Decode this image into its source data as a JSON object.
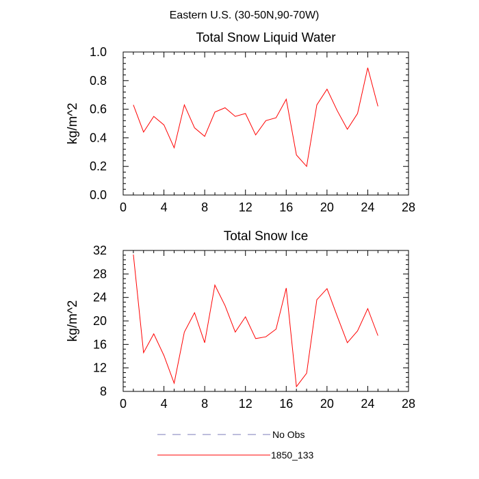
{
  "supertitle": "Eastern U.S. (30-50N,90-70W)",
  "chart_data": [
    {
      "type": "line",
      "title": "Total Snow Liquid Water",
      "ylabel": "kg/m^2",
      "xlabel": "",
      "xlim": [
        0,
        28
      ],
      "ylim": [
        0.0,
        1.0
      ],
      "xticks": [
        0,
        4,
        8,
        12,
        16,
        20,
        24,
        28
      ],
      "xtick_labels": [
        "0",
        "4",
        "8",
        "12",
        "16",
        "20",
        "24",
        "28"
      ],
      "yticks": [
        0.0,
        0.2,
        0.4,
        0.6,
        0.8,
        1.0
      ],
      "ytick_labels": [
        "0.0",
        "0.2",
        "0.4",
        "0.6",
        "0.8",
        "1.0"
      ],
      "grid": false,
      "series": [
        {
          "name": "1850_133",
          "color": "#ff0000",
          "x": [
            1,
            2,
            3,
            4,
            5,
            6,
            7,
            8,
            9,
            10,
            11,
            12,
            13,
            14,
            15,
            16,
            17,
            18,
            19,
            20,
            21,
            22,
            23,
            24,
            25
          ],
          "values": [
            0.63,
            0.44,
            0.55,
            0.49,
            0.33,
            0.63,
            0.47,
            0.41,
            0.58,
            0.61,
            0.55,
            0.57,
            0.42,
            0.52,
            0.54,
            0.67,
            0.28,
            0.2,
            0.63,
            0.74,
            0.59,
            0.46,
            0.57,
            0.89,
            0.62
          ]
        }
      ]
    },
    {
      "type": "line",
      "title": "Total Snow Ice",
      "ylabel": "kg/m^2",
      "xlabel": "",
      "xlim": [
        0,
        28
      ],
      "ylim": [
        8,
        32
      ],
      "xticks": [
        0,
        4,
        8,
        12,
        16,
        20,
        24,
        28
      ],
      "xtick_labels": [
        "0",
        "4",
        "8",
        "12",
        "16",
        "20",
        "24",
        "28"
      ],
      "yticks": [
        8,
        12,
        16,
        20,
        24,
        28,
        32
      ],
      "ytick_labels": [
        "8",
        "12",
        "16",
        "20",
        "24",
        "28",
        "32"
      ],
      "grid": false,
      "series": [
        {
          "name": "1850_133",
          "color": "#ff0000",
          "x": [
            1,
            2,
            3,
            4,
            5,
            6,
            7,
            8,
            9,
            10,
            11,
            12,
            13,
            14,
            15,
            16,
            17,
            18,
            19,
            20,
            21,
            22,
            23,
            24,
            25
          ],
          "values": [
            31.3,
            14.6,
            17.8,
            14.1,
            9.4,
            18.1,
            21.4,
            16.3,
            26.1,
            22.6,
            18.1,
            20.7,
            17.0,
            17.3,
            18.6,
            25.6,
            8.8,
            11.1,
            23.6,
            25.5,
            20.8,
            16.3,
            18.3,
            22.1,
            17.5
          ]
        }
      ]
    }
  ],
  "legend": {
    "placement": "bottom-center",
    "entries": [
      {
        "label": "No Obs",
        "color": "#7b7bb8",
        "dash": "dashed"
      },
      {
        "label": "1850_133",
        "color": "#ff0000",
        "dash": "solid"
      }
    ]
  }
}
